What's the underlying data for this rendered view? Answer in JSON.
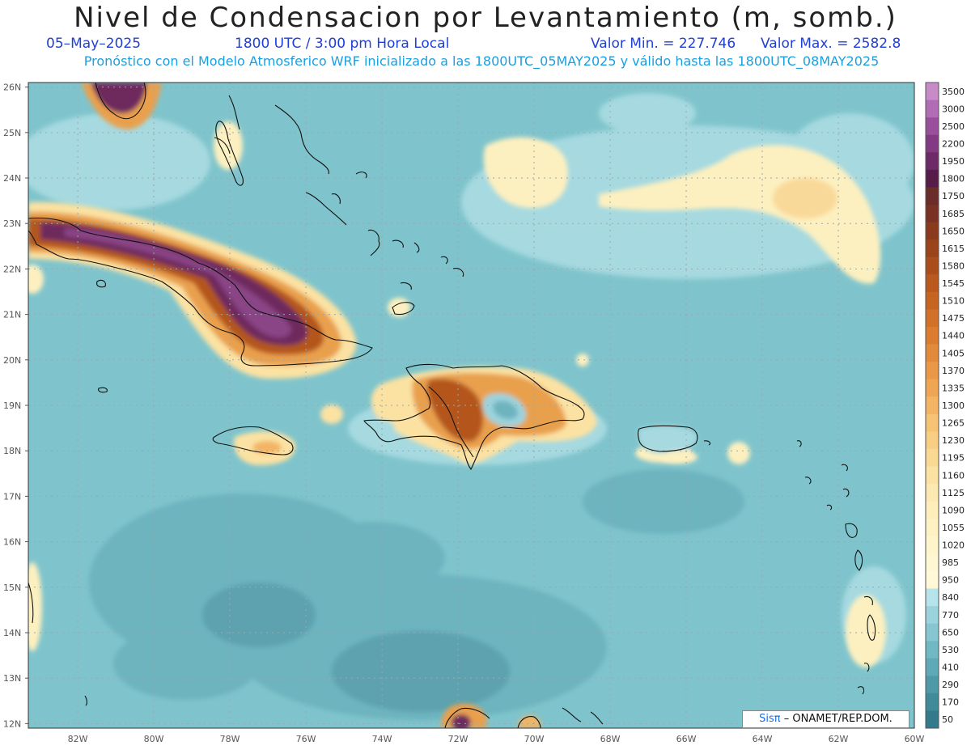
{
  "header": {
    "title": "Nivel de Condensacion por Levantamiento (m, somb.)",
    "date": "05–May–2025",
    "time": "1800 UTC / 3:00 pm Hora Local",
    "valmin": "Valor Min. = 227.746",
    "valmax": "Valor Max. = 2582.8",
    "subtitle": "Pronóstico con el Modelo Atmosferico WRF inicializado a las 1800UTC_05MAY2025 y válido hasta las  1800UTC_08MAY2025"
  },
  "axes": {
    "lat_labels": [
      "26N",
      "25N",
      "24N",
      "23N",
      "22N",
      "21N",
      "20N",
      "19N",
      "18N",
      "17N",
      "16N",
      "15N",
      "14N",
      "13N",
      "12N"
    ],
    "lon_labels": [
      "82W",
      "80W",
      "78W",
      "76W",
      "74W",
      "72W",
      "70W",
      "68W",
      "66W",
      "64W",
      "62W",
      "60W"
    ]
  },
  "colorbar": {
    "labels": [
      "3500",
      "3000",
      "2500",
      "2200",
      "1950",
      "1800",
      "1750",
      "1685",
      "1650",
      "1615",
      "1580",
      "1545",
      "1510",
      "1475",
      "1440",
      "1405",
      "1370",
      "1335",
      "1300",
      "1265",
      "1230",
      "1195",
      "1160",
      "1125",
      "1090",
      "1055",
      "1020",
      "985",
      "950",
      "840",
      "770",
      "650",
      "530",
      "410",
      "290",
      "170",
      "50"
    ],
    "colors": [
      "#c78cc8",
      "#b06cb4",
      "#9a4f9d",
      "#843a82",
      "#6c2a68",
      "#571d4a",
      "#6a2d2a",
      "#7a3322",
      "#8a3b1e",
      "#9a441c",
      "#aa4e1c",
      "#b9591e",
      "#c66422",
      "#d17028",
      "#db7c30",
      "#e38a3a",
      "#ea9846",
      "#efa654",
      "#f3b463",
      "#f6c273",
      "#f8ce84",
      "#fad994",
      "#fbe2a3",
      "#fce9b1",
      "#fdeebc",
      "#fef2c4",
      "#fef5cb",
      "#fff7d2",
      "#fff9d9",
      "#b7e3ea",
      "#9bd3dc",
      "#85c6d0",
      "#70b9c4",
      "#5ea9b6",
      "#4f99a7",
      "#418a99",
      "#337b8c"
    ]
  },
  "credit": {
    "logo": "Sisπ",
    "text": "– ONAMET/REP.DOM."
  },
  "colors": {
    "ocean": "#7fc4cc",
    "coast": "#111111",
    "grid": "#9aa8ad"
  }
}
